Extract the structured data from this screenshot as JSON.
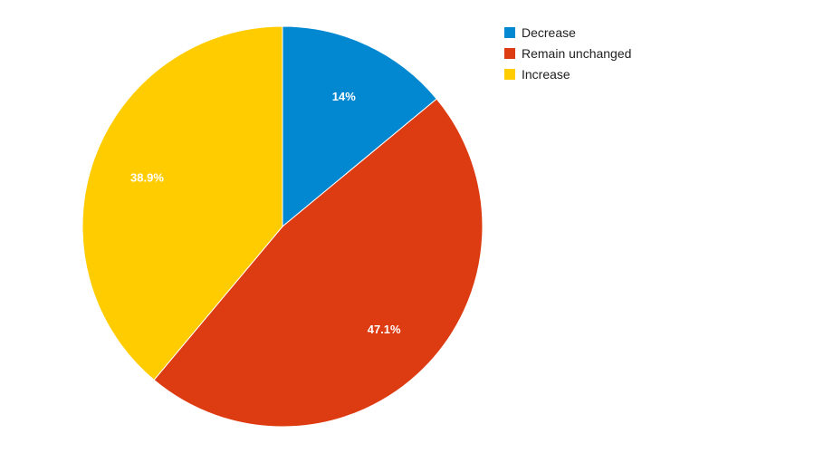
{
  "chart_data": {
    "type": "pie",
    "title": "",
    "slices": [
      {
        "label": "Decrease",
        "value": 14.0,
        "display": "14%",
        "color": "#0288d1"
      },
      {
        "label": "Remain unchanged",
        "value": 47.1,
        "display": "47.1%",
        "color": "#dd3b11"
      },
      {
        "label": "Increase",
        "value": 38.9,
        "display": "38.9%",
        "color": "#ffcc00"
      }
    ],
    "start_angle": "12 o'clock",
    "direction": "clockwise",
    "legend_position": "right"
  }
}
